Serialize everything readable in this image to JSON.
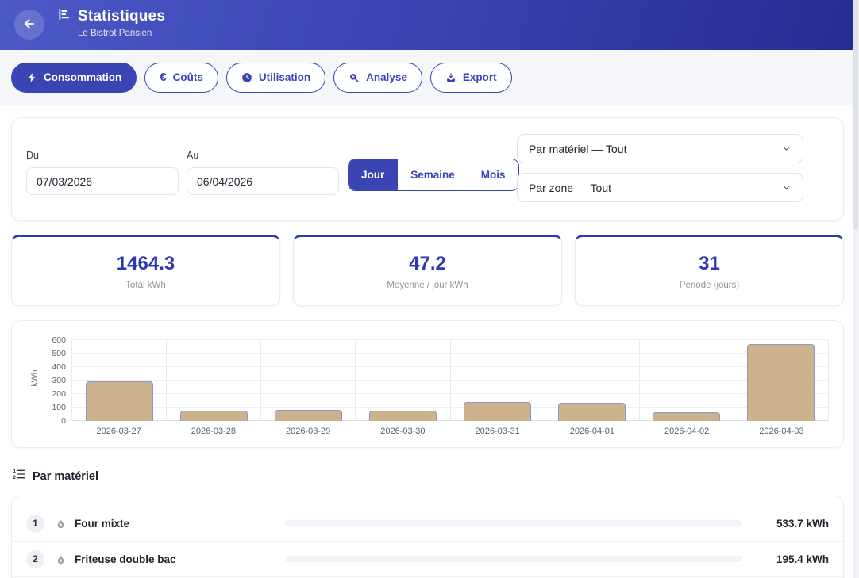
{
  "header": {
    "title": "Statistiques",
    "subtitle": "Le Bistrot Parisien"
  },
  "tabs": [
    {
      "label": "Consommation",
      "icon": "bolt",
      "active": true
    },
    {
      "label": "Coûts",
      "icon": "euro",
      "active": false
    },
    {
      "label": "Utilisation",
      "icon": "clock",
      "active": false
    },
    {
      "label": "Analyse",
      "icon": "magnifier-plus",
      "active": false
    },
    {
      "label": "Export",
      "icon": "download",
      "active": false
    }
  ],
  "filters": {
    "from_label": "Du",
    "from_value": "07/03/2026",
    "to_label": "Au",
    "to_value": "06/04/2026",
    "granularity": [
      {
        "label": "Jour",
        "active": true
      },
      {
        "label": "Semaine",
        "active": false
      },
      {
        "label": "Mois",
        "active": false
      }
    ],
    "selects": [
      {
        "value": "Par matériel — Tout"
      },
      {
        "value": "Par zone — Tout"
      }
    ]
  },
  "stats": [
    {
      "value": "1464.3",
      "label": "Total kWh"
    },
    {
      "value": "47.2",
      "label": "Moyenne / jour kWh"
    },
    {
      "value": "31",
      "label": "Période (jours)"
    }
  ],
  "chart_data": {
    "type": "bar",
    "categories": [
      "2026-03-27",
      "2026-03-28",
      "2026-03-29",
      "2026-03-30",
      "2026-03-31",
      "2026-04-01",
      "2026-04-02",
      "2026-04-03"
    ],
    "values": [
      294,
      78,
      82,
      77,
      142,
      134,
      64,
      572
    ],
    "title": "",
    "xlabel": "",
    "ylabel": "kWh",
    "ylim": [
      0,
      600
    ],
    "yticks": [
      0,
      100,
      200,
      300,
      400,
      500,
      600
    ],
    "grid": true,
    "legend": false,
    "bar_color": "#cdb28e",
    "bar_border": "#8f96c9"
  },
  "equipment_section": {
    "title": "Par matériel",
    "items": [
      {
        "rank": "1",
        "name": "Four mixte",
        "value": "533.7 kWh"
      },
      {
        "rank": "2",
        "name": "Friteuse double bac",
        "value": "195.4 kWh"
      }
    ]
  },
  "colors": {
    "primary": "#3a45b3",
    "header_gradient_start": "#4d59c7",
    "header_gradient_end": "#252b90",
    "stat_value": "#2d39b0",
    "bar_fill": "#cdb28e",
    "bar_border": "#8f96c9"
  }
}
